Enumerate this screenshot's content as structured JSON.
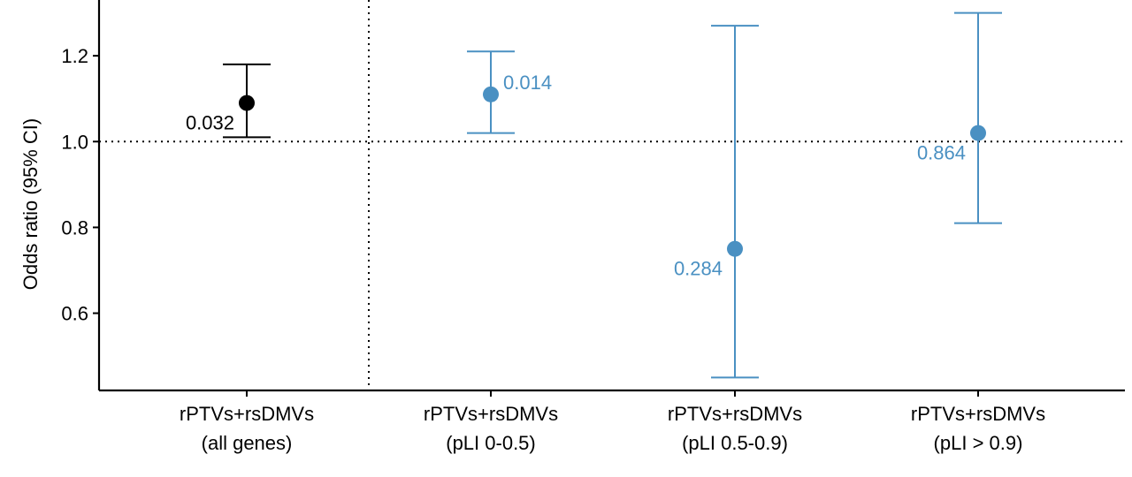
{
  "chart_data": {
    "type": "errorbar",
    "ylabel": "Odds ratio (95% CI)",
    "ylim": [
      0.42,
      1.33
    ],
    "yticks": [
      0.6,
      0.8,
      1.0,
      1.2
    ],
    "ytick_labels": [
      "0.6",
      "0.8",
      "1.0",
      "1.2"
    ],
    "reference_line_y": 1.0,
    "separator_after_category": 1,
    "categories": [
      {
        "line1": "rPTVs+rsDMVs",
        "line2": "(all genes)"
      },
      {
        "line1": "rPTVs+rsDMVs",
        "line2": "(pLI 0-0.5)"
      },
      {
        "line1": "rPTVs+rsDMVs",
        "line2": "(pLI 0.5-0.9)"
      },
      {
        "line1": "rPTVs+rsDMVs",
        "line2": "(pLI > 0.9)"
      }
    ],
    "points": [
      {
        "or": 1.09,
        "ci_low": 1.01,
        "ci_high": 1.18,
        "label": "0.032",
        "label_side": "left-below",
        "color": "#000000"
      },
      {
        "or": 1.11,
        "ci_low": 1.02,
        "ci_high": 1.21,
        "label": "0.014",
        "label_side": "right-above",
        "color": "#4a90c2"
      },
      {
        "or": 0.75,
        "ci_low": 0.45,
        "ci_high": 1.27,
        "label": "0.284",
        "label_side": "left-below",
        "color": "#4a90c2"
      },
      {
        "or": 1.02,
        "ci_low": 0.81,
        "ci_high": 1.3,
        "label": "0.864",
        "label_side": "left-below",
        "color": "#4a90c2"
      }
    ]
  }
}
